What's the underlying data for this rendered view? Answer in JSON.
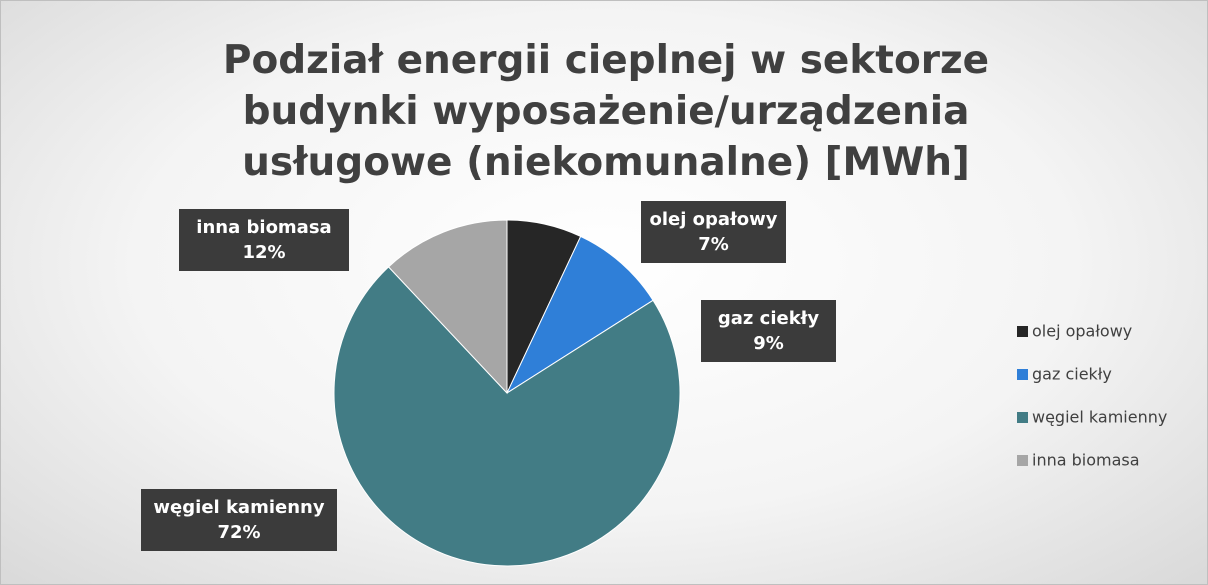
{
  "chart_data": {
    "type": "pie",
    "title": "Podział energii cieplnej w sektorze budynki wyposażenie/urządzenia usługowe (niekomunalne) [MWh]",
    "categories": [
      "olej opałowy",
      "gaz ciekły",
      "węgiel kamienny",
      "inna biomasa"
    ],
    "values": [
      7,
      9,
      72,
      12
    ],
    "value_labels": [
      "7%",
      "9%",
      "72%",
      "12%"
    ],
    "colors": [
      "#262626",
      "#2f7fd8",
      "#427c85",
      "#a6a6a6"
    ],
    "legend": "right"
  }
}
